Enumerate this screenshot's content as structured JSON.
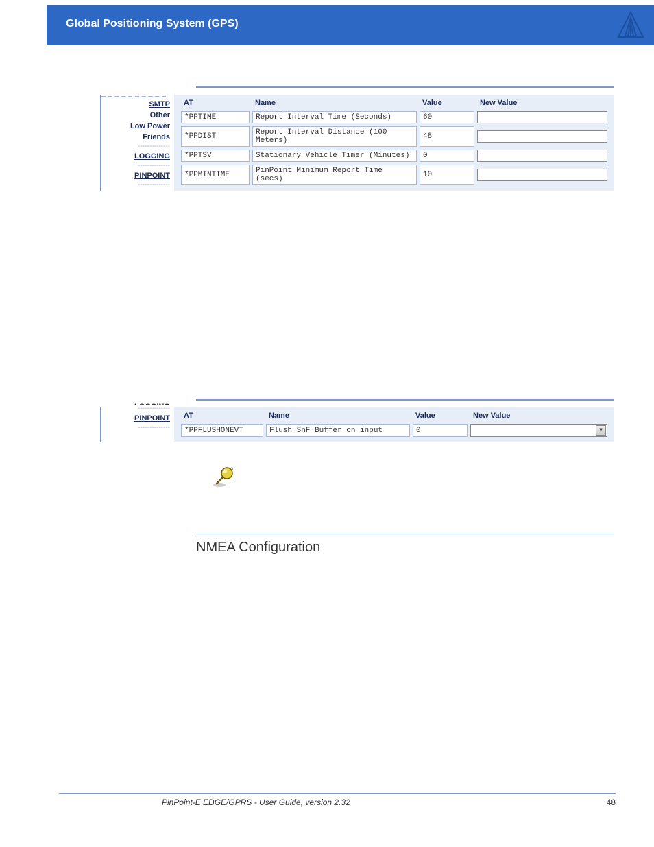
{
  "header": {
    "title": "Global Positioning System (GPS)",
    "bg_color": "#2d68c4",
    "logo_stroke": "#1b4fa0"
  },
  "panel1": {
    "sidebar": {
      "items": [
        {
          "label": "SMTP",
          "link": true,
          "sep": false
        },
        {
          "label": "Other",
          "link": false,
          "sep": false
        },
        {
          "label": "Low Power",
          "link": false,
          "sep": false
        },
        {
          "label": "Friends",
          "link": false,
          "sep": true
        },
        {
          "label": "LOGGING",
          "link": true,
          "sep": true
        },
        {
          "label": "PINPOINT",
          "link": true,
          "sep": true
        }
      ]
    },
    "columns": {
      "at": "AT",
      "name": "Name",
      "value": "Value",
      "newvalue": "New Value"
    },
    "rows": [
      {
        "at": "*PPTIME",
        "name": "Report Interval Time (Seconds)",
        "value": "60"
      },
      {
        "at": "*PPDIST",
        "name": "Report Interval Distance (100 Meters)",
        "value": "48"
      },
      {
        "at": "*PPTSV",
        "name": "Stationary Vehicle Timer (Minutes)",
        "value": "0"
      },
      {
        "at": "*PPMINTIME",
        "name": "PinPoint Minimum Report Time (secs)",
        "value": "10"
      }
    ]
  },
  "panel2": {
    "sidebar": {
      "cut_label": "LOGGING",
      "items": [
        {
          "label": "PINPOINT",
          "link": true,
          "sep": true
        }
      ]
    },
    "columns": {
      "at": "AT",
      "name": "Name",
      "value": "Value",
      "newvalue": "New Value"
    },
    "rows": [
      {
        "at": "*PPFLUSHONEVT",
        "name": "Flush SnF Buffer on input",
        "value": "0"
      }
    ]
  },
  "section": {
    "title": "NMEA Configuration"
  },
  "footer": {
    "guide": "PinPoint-E EDGE/GPRS - User Guide, version 2.32",
    "page": "48"
  },
  "note_icon": {
    "pin_fill": "#d6c02a",
    "pin_stroke": "#6b5a00",
    "shadow": "#555"
  },
  "styling": {
    "panel_bg": "#e8eef8",
    "cell_border": "#a8b8d8",
    "rule_color": "#7a99c9",
    "text_color": "#1a2a5a"
  }
}
